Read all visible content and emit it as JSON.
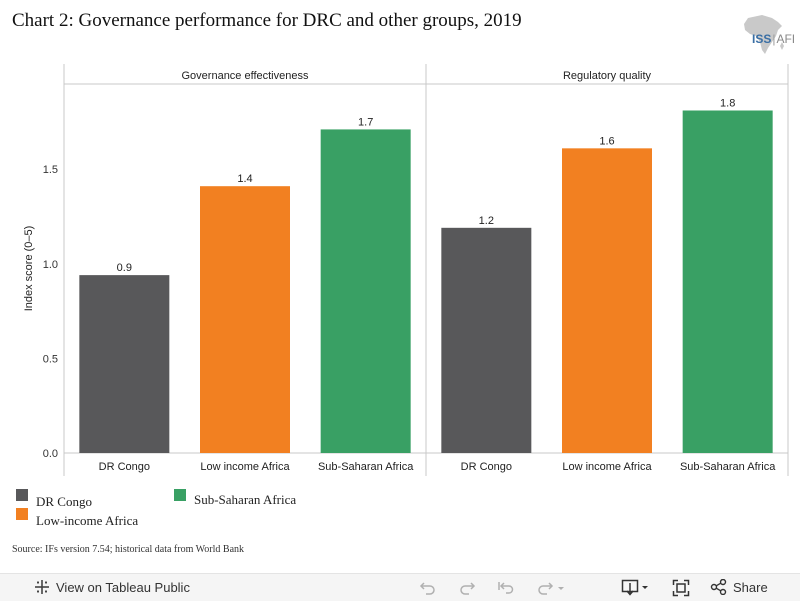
{
  "title": "Chart 2: Governance performance for DRC and other groups, 2019",
  "logo": {
    "org": "ISS",
    "sep": "|",
    "brand": "AFI"
  },
  "colors": {
    "DR Congo": "#58585a",
    "Low income Africa": "#f28021",
    "Sub-Saharan Africa": "#39a064"
  },
  "chart_data": {
    "type": "bar",
    "ylabel": "Index score (0–5)",
    "ylim": [
      0,
      1.95
    ],
    "yticks": [
      "0.0",
      "0.5",
      "1.0",
      "1.5"
    ],
    "grid": false,
    "categories": [
      "DR Congo",
      "Low income Africa",
      "Sub-Saharan Africa"
    ],
    "panels": [
      {
        "name": "Governance  effectiveness",
        "values": [
          0.94,
          1.41,
          1.71
        ],
        "labels": [
          "0.9",
          "1.4",
          "1.7"
        ]
      },
      {
        "name": "Regulatory quality",
        "values": [
          1.19,
          1.61,
          1.81
        ],
        "labels": [
          "1.2",
          "1.6",
          "1.8"
        ]
      }
    ]
  },
  "legend": {
    "items": [
      {
        "label": "DR Congo",
        "color": "#58585a"
      },
      {
        "label": "Sub-Saharan Africa",
        "color": "#39a064"
      },
      {
        "label": "Low-income Africa",
        "color": "#f28021"
      }
    ]
  },
  "source": "Source: IFs version 7.54; historical data from World Bank",
  "toolbar": {
    "view_label": "View on Tableau Public",
    "share_label": "Share",
    "icons": [
      "tableau-icon",
      "undo-icon",
      "redo-icon",
      "revert-icon",
      "refresh-icon",
      "download-icon",
      "fullscreen-icon",
      "share-icon"
    ]
  }
}
